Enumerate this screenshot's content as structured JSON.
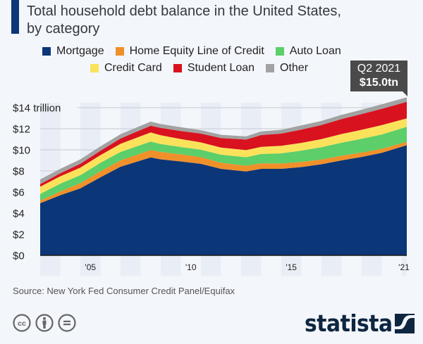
{
  "title": {
    "line1": "Total household debt balance in the United States,",
    "line2": "by category"
  },
  "legend": {
    "row1": [
      {
        "label": "Mortgage",
        "color": "#0b3677"
      },
      {
        "label": "Home Equity Line of Credit",
        "color": "#f0902a"
      },
      {
        "label": "Auto Loan",
        "color": "#5cce6a"
      }
    ],
    "row2": [
      {
        "label": "Credit Card",
        "color": "#fbe25a"
      },
      {
        "label": "Student Loan",
        "color": "#d9121f"
      },
      {
        "label": "Other",
        "color": "#a2a2a2"
      }
    ]
  },
  "tooltip": {
    "period": "Q2 2021",
    "value": "$15.0tn"
  },
  "source": "Source: New York Fed Consumer Credit Panel/Equifax",
  "logo": {
    "text": "statista"
  },
  "footer_icons": [
    "cc-icon",
    "by-icon",
    "nd-icon"
  ],
  "chart_data": {
    "type": "area",
    "stacked": true,
    "title": "Total household debt balance in the United States, by category",
    "xlabel": "",
    "ylabel": "",
    "ylim": [
      0,
      14
    ],
    "yticks": [
      0,
      2,
      4,
      6,
      8,
      10,
      12,
      14
    ],
    "ytick_labels": [
      "$0",
      "$2",
      "$4",
      "$6",
      "$8",
      "$10",
      "$12",
      "$14 trillion"
    ],
    "xtick_labels": [
      "'05",
      "'10",
      "'15",
      "'21"
    ],
    "xtick_values": [
      2005.5,
      2010.5,
      2015.5,
      2021.25
    ],
    "grid": true,
    "legend_position": "top",
    "annotation": {
      "x": 2021.25,
      "text": "Q2 2021 $15.0tn"
    },
    "x": [
      2003.0,
      2004.0,
      2005.0,
      2006.0,
      2007.0,
      2008.5,
      2009.0,
      2010.0,
      2011.0,
      2012.0,
      2013.25,
      2014.0,
      2015.0,
      2016.0,
      2017.0,
      2018.0,
      2019.0,
      2020.0,
      2021.25
    ],
    "series": [
      {
        "name": "Mortgage",
        "color": "#0b3677",
        "values": [
          4.94,
          5.7,
          6.35,
          7.4,
          8.4,
          9.29,
          9.1,
          8.9,
          8.67,
          8.2,
          7.95,
          8.2,
          8.2,
          8.37,
          8.63,
          9.0,
          9.33,
          9.71,
          10.44
        ]
      },
      {
        "name": "Home Equity Line of Credit",
        "color": "#f0902a",
        "values": [
          0.24,
          0.36,
          0.5,
          0.57,
          0.6,
          0.69,
          0.71,
          0.67,
          0.64,
          0.59,
          0.54,
          0.53,
          0.51,
          0.49,
          0.45,
          0.44,
          0.41,
          0.39,
          0.32
        ]
      },
      {
        "name": "Auto Loan",
        "color": "#5cce6a",
        "values": [
          0.64,
          0.73,
          0.75,
          0.8,
          0.8,
          0.81,
          0.74,
          0.7,
          0.7,
          0.75,
          0.81,
          0.88,
          0.96,
          1.07,
          1.17,
          1.23,
          1.31,
          1.35,
          1.43
        ]
      },
      {
        "name": "Credit Card",
        "color": "#fbe25a",
        "values": [
          0.69,
          0.7,
          0.72,
          0.73,
          0.77,
          0.86,
          0.84,
          0.76,
          0.7,
          0.68,
          0.67,
          0.68,
          0.71,
          0.73,
          0.76,
          0.83,
          0.85,
          0.89,
          0.79
        ]
      },
      {
        "name": "Student Loan",
        "color": "#d9121f",
        "values": [
          0.24,
          0.29,
          0.36,
          0.42,
          0.5,
          0.64,
          0.69,
          0.76,
          0.83,
          0.9,
          1.0,
          1.11,
          1.16,
          1.26,
          1.34,
          1.41,
          1.49,
          1.54,
          1.57
        ]
      },
      {
        "name": "Other",
        "color": "#a2a2a2",
        "values": [
          0.45,
          0.42,
          0.42,
          0.41,
          0.42,
          0.38,
          0.37,
          0.35,
          0.33,
          0.31,
          0.3,
          0.35,
          0.36,
          0.39,
          0.38,
          0.4,
          0.41,
          0.43,
          0.42
        ]
      }
    ]
  }
}
